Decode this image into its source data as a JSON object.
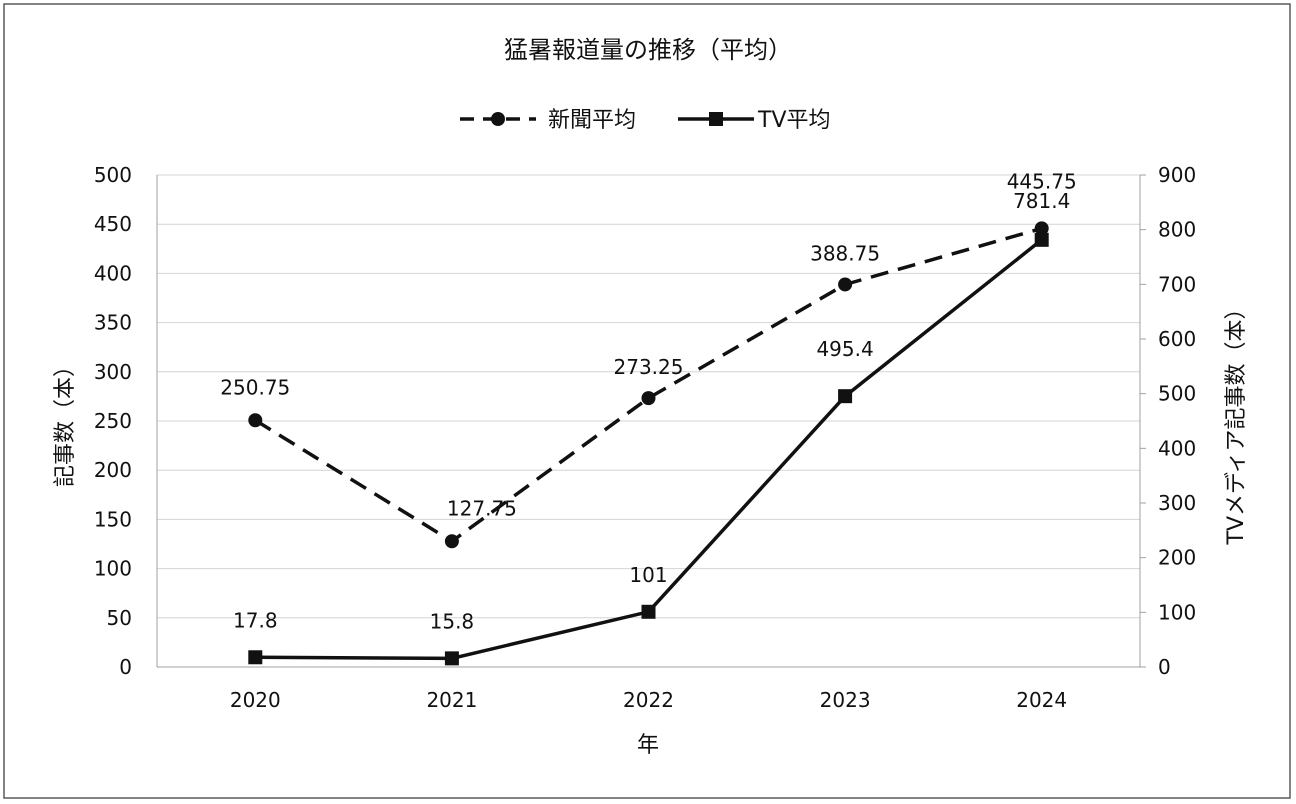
{
  "chart_data": {
    "type": "line",
    "title": "猛暑報道量の推移（平均）",
    "xlabel": "年",
    "ylabel": "記事数（本）",
    "y2label": "TVメディア記事数（本）",
    "categories": [
      "2020",
      "2021",
      "2022",
      "2023",
      "2024"
    ],
    "ylim": [
      0,
      500
    ],
    "y2lim": [
      0,
      900
    ],
    "yticks": [
      "0",
      "50",
      "100",
      "150",
      "200",
      "250",
      "300",
      "350",
      "400",
      "450",
      "500"
    ],
    "y2ticks": [
      "0",
      "100",
      "200",
      "300",
      "400",
      "500",
      "600",
      "700",
      "800",
      "900"
    ],
    "grid": true,
    "legend": "top",
    "series": [
      {
        "name": "新聞平均",
        "axis": "left",
        "style": "dashed",
        "marker": "circle",
        "color": "#111111",
        "values": [
          250.75,
          127.75,
          273.25,
          388.75,
          445.75
        ],
        "labels": [
          "250.75",
          "127.75",
          "273.25",
          "388.75",
          "445.75"
        ]
      },
      {
        "name": "TV平均",
        "axis": "right",
        "style": "solid",
        "marker": "square",
        "color": "#111111",
        "values": [
          17.8,
          15.8,
          101,
          495.4,
          781.4
        ],
        "labels": [
          "17.8",
          "15.8",
          "101",
          "495.4",
          "781.4"
        ]
      }
    ]
  }
}
